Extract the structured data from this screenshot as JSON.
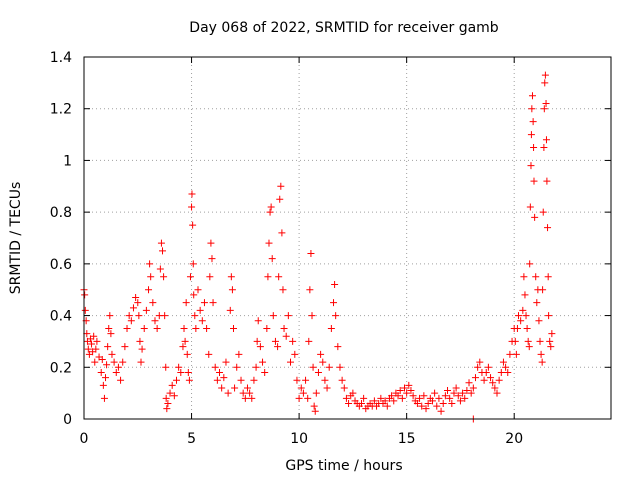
{
  "chart_data": {
    "type": "scatter",
    "title": "Day 068 of 2022, SRMTID for receiver gamb",
    "xlabel": "GPS time / hours",
    "ylabel": "SRMTID / TECUs",
    "xlim": [
      0,
      24.5
    ],
    "ylim": [
      0,
      1.4
    ],
    "xticks": [
      0,
      5,
      10,
      15,
      20
    ],
    "yticks": [
      0,
      0.2,
      0.4,
      0.6,
      0.8,
      1.0,
      1.2,
      1.4
    ],
    "xtick_labels": [
      "0",
      "5",
      "10",
      "15",
      "20"
    ],
    "ytick_labels": [
      "0",
      "0.2",
      "0.4",
      "0.6",
      "0.8",
      "1",
      "1.2",
      "1.4"
    ],
    "grid": true,
    "marker": "plus",
    "color": "#ff0000",
    "series": [
      {
        "name": "gamb",
        "points": [
          [
            0.0,
            0.5
          ],
          [
            0.03,
            0.48
          ],
          [
            0.06,
            0.42
          ],
          [
            0.1,
            0.38
          ],
          [
            0.13,
            0.33
          ],
          [
            0.16,
            0.3
          ],
          [
            0.2,
            0.27
          ],
          [
            0.25,
            0.25
          ],
          [
            0.3,
            0.31
          ],
          [
            0.35,
            0.29
          ],
          [
            0.4,
            0.26
          ],
          [
            0.45,
            0.32
          ],
          [
            0.5,
            0.22
          ],
          [
            0.55,
            0.27
          ],
          [
            0.6,
            0.3
          ],
          [
            0.7,
            0.24
          ],
          [
            0.8,
            0.18
          ],
          [
            0.85,
            0.23
          ],
          [
            0.9,
            0.13
          ],
          [
            0.95,
            0.08
          ],
          [
            1.0,
            0.16
          ],
          [
            1.05,
            0.21
          ],
          [
            1.1,
            0.28
          ],
          [
            1.15,
            0.35
          ],
          [
            1.2,
            0.4
          ],
          [
            1.25,
            0.33
          ],
          [
            1.3,
            0.25
          ],
          [
            1.4,
            0.22
          ],
          [
            1.5,
            0.18
          ],
          [
            1.6,
            0.2
          ],
          [
            1.7,
            0.15
          ],
          [
            1.8,
            0.22
          ],
          [
            1.9,
            0.28
          ],
          [
            2.0,
            0.35
          ],
          [
            2.1,
            0.4
          ],
          [
            2.2,
            0.38
          ],
          [
            2.3,
            0.43
          ],
          [
            2.4,
            0.47
          ],
          [
            2.5,
            0.45
          ],
          [
            2.55,
            0.4
          ],
          [
            2.6,
            0.3
          ],
          [
            2.65,
            0.22
          ],
          [
            2.7,
            0.27
          ],
          [
            2.8,
            0.35
          ],
          [
            2.9,
            0.42
          ],
          [
            3.0,
            0.5
          ],
          [
            3.05,
            0.6
          ],
          [
            3.1,
            0.55
          ],
          [
            3.2,
            0.45
          ],
          [
            3.3,
            0.38
          ],
          [
            3.4,
            0.35
          ],
          [
            3.5,
            0.4
          ],
          [
            3.55,
            0.58
          ],
          [
            3.6,
            0.68
          ],
          [
            3.65,
            0.65
          ],
          [
            3.7,
            0.55
          ],
          [
            3.75,
            0.4
          ],
          [
            3.8,
            0.2
          ],
          [
            3.82,
            0.08
          ],
          [
            3.85,
            0.04
          ],
          [
            3.9,
            0.06
          ],
          [
            4.0,
            0.1
          ],
          [
            4.1,
            0.13
          ],
          [
            4.2,
            0.09
          ],
          [
            4.3,
            0.15
          ],
          [
            4.4,
            0.2
          ],
          [
            4.5,
            0.18
          ],
          [
            4.6,
            0.28
          ],
          [
            4.65,
            0.35
          ],
          [
            4.7,
            0.3
          ],
          [
            4.75,
            0.45
          ],
          [
            4.8,
            0.25
          ],
          [
            4.85,
            0.18
          ],
          [
            4.9,
            0.15
          ],
          [
            4.95,
            0.55
          ],
          [
            5.0,
            0.82
          ],
          [
            5.02,
            0.87
          ],
          [
            5.05,
            0.75
          ],
          [
            5.08,
            0.6
          ],
          [
            5.1,
            0.48
          ],
          [
            5.15,
            0.4
          ],
          [
            5.2,
            0.35
          ],
          [
            5.3,
            0.5
          ],
          [
            5.4,
            0.42
          ],
          [
            5.5,
            0.38
          ],
          [
            5.6,
            0.45
          ],
          [
            5.7,
            0.35
          ],
          [
            5.8,
            0.25
          ],
          [
            5.85,
            0.55
          ],
          [
            5.9,
            0.68
          ],
          [
            5.95,
            0.62
          ],
          [
            6.0,
            0.45
          ],
          [
            6.1,
            0.2
          ],
          [
            6.2,
            0.15
          ],
          [
            6.3,
            0.18
          ],
          [
            6.4,
            0.12
          ],
          [
            6.5,
            0.16
          ],
          [
            6.6,
            0.22
          ],
          [
            6.7,
            0.1
          ],
          [
            6.8,
            0.42
          ],
          [
            6.85,
            0.55
          ],
          [
            6.9,
            0.5
          ],
          [
            6.95,
            0.35
          ],
          [
            7.0,
            0.12
          ],
          [
            7.1,
            0.2
          ],
          [
            7.2,
            0.25
          ],
          [
            7.3,
            0.15
          ],
          [
            7.4,
            0.1
          ],
          [
            7.5,
            0.08
          ],
          [
            7.6,
            0.12
          ],
          [
            7.7,
            0.1
          ],
          [
            7.8,
            0.08
          ],
          [
            7.9,
            0.15
          ],
          [
            8.0,
            0.2
          ],
          [
            8.05,
            0.3
          ],
          [
            8.1,
            0.38
          ],
          [
            8.2,
            0.28
          ],
          [
            8.3,
            0.22
          ],
          [
            8.4,
            0.18
          ],
          [
            8.5,
            0.35
          ],
          [
            8.55,
            0.55
          ],
          [
            8.6,
            0.68
          ],
          [
            8.65,
            0.8
          ],
          [
            8.7,
            0.82
          ],
          [
            8.75,
            0.62
          ],
          [
            8.8,
            0.4
          ],
          [
            8.9,
            0.3
          ],
          [
            9.0,
            0.28
          ],
          [
            9.05,
            0.55
          ],
          [
            9.1,
            0.85
          ],
          [
            9.15,
            0.9
          ],
          [
            9.2,
            0.72
          ],
          [
            9.25,
            0.5
          ],
          [
            9.3,
            0.35
          ],
          [
            9.4,
            0.32
          ],
          [
            9.5,
            0.4
          ],
          [
            9.6,
            0.22
          ],
          [
            9.7,
            0.3
          ],
          [
            9.8,
            0.25
          ],
          [
            9.9,
            0.15
          ],
          [
            10.0,
            0.08
          ],
          [
            10.1,
            0.12
          ],
          [
            10.2,
            0.1
          ],
          [
            10.3,
            0.15
          ],
          [
            10.4,
            0.08
          ],
          [
            10.45,
            0.3
          ],
          [
            10.5,
            0.5
          ],
          [
            10.55,
            0.64
          ],
          [
            10.6,
            0.4
          ],
          [
            10.65,
            0.2
          ],
          [
            10.7,
            0.05
          ],
          [
            10.75,
            0.03
          ],
          [
            10.8,
            0.1
          ],
          [
            10.9,
            0.18
          ],
          [
            11.0,
            0.25
          ],
          [
            11.1,
            0.22
          ],
          [
            11.2,
            0.15
          ],
          [
            11.3,
            0.12
          ],
          [
            11.4,
            0.2
          ],
          [
            11.5,
            0.35
          ],
          [
            11.6,
            0.45
          ],
          [
            11.65,
            0.52
          ],
          [
            11.7,
            0.4
          ],
          [
            11.8,
            0.28
          ],
          [
            11.9,
            0.2
          ],
          [
            12.0,
            0.15
          ],
          [
            12.1,
            0.12
          ],
          [
            12.2,
            0.08
          ],
          [
            12.3,
            0.06
          ],
          [
            12.4,
            0.09
          ],
          [
            12.5,
            0.1
          ],
          [
            12.6,
            0.07
          ],
          [
            12.7,
            0.06
          ],
          [
            12.8,
            0.05
          ],
          [
            12.9,
            0.06
          ],
          [
            13.0,
            0.08
          ],
          [
            13.1,
            0.04
          ],
          [
            13.2,
            0.05
          ],
          [
            13.3,
            0.06
          ],
          [
            13.4,
            0.05
          ],
          [
            13.5,
            0.07
          ],
          [
            13.6,
            0.05
          ],
          [
            13.7,
            0.06
          ],
          [
            13.8,
            0.08
          ],
          [
            13.9,
            0.06
          ],
          [
            14.0,
            0.07
          ],
          [
            14.1,
            0.05
          ],
          [
            14.2,
            0.08
          ],
          [
            14.3,
            0.09
          ],
          [
            14.4,
            0.07
          ],
          [
            14.5,
            0.1
          ],
          [
            14.6,
            0.09
          ],
          [
            14.7,
            0.11
          ],
          [
            14.8,
            0.08
          ],
          [
            14.9,
            0.12
          ],
          [
            15.0,
            0.1
          ],
          [
            15.1,
            0.13
          ],
          [
            15.2,
            0.11
          ],
          [
            15.3,
            0.09
          ],
          [
            15.4,
            0.07
          ],
          [
            15.5,
            0.06
          ],
          [
            15.6,
            0.08
          ],
          [
            15.7,
            0.05
          ],
          [
            15.8,
            0.09
          ],
          [
            15.9,
            0.04
          ],
          [
            16.0,
            0.06
          ],
          [
            16.1,
            0.08
          ],
          [
            16.2,
            0.07
          ],
          [
            16.3,
            0.1
          ],
          [
            16.4,
            0.05
          ],
          [
            16.5,
            0.08
          ],
          [
            16.6,
            0.03
          ],
          [
            16.7,
            0.06
          ],
          [
            16.8,
            0.09
          ],
          [
            16.9,
            0.11
          ],
          [
            17.0,
            0.08
          ],
          [
            17.1,
            0.06
          ],
          [
            17.2,
            0.1
          ],
          [
            17.3,
            0.12
          ],
          [
            17.4,
            0.09
          ],
          [
            17.5,
            0.07
          ],
          [
            17.6,
            0.1
          ],
          [
            17.7,
            0.08
          ],
          [
            17.8,
            0.11
          ],
          [
            17.9,
            0.14
          ],
          [
            18.0,
            0.1
          ],
          [
            18.1,
            0.12
          ],
          [
            18.2,
            0.16
          ],
          [
            18.3,
            0.2
          ],
          [
            18.4,
            0.22
          ],
          [
            18.5,
            0.18
          ],
          [
            18.6,
            0.15
          ],
          [
            18.7,
            0.18
          ],
          [
            18.8,
            0.2
          ],
          [
            18.9,
            0.16
          ],
          [
            19.0,
            0.14
          ],
          [
            19.1,
            0.12
          ],
          [
            19.2,
            0.1
          ],
          [
            19.3,
            0.15
          ],
          [
            19.4,
            0.18
          ],
          [
            19.5,
            0.22
          ],
          [
            19.6,
            0.2
          ],
          [
            19.7,
            0.18
          ],
          [
            19.8,
            0.25
          ],
          [
            19.9,
            0.3
          ],
          [
            20.0,
            0.35
          ],
          [
            20.05,
            0.3
          ],
          [
            20.1,
            0.25
          ],
          [
            20.15,
            0.35
          ],
          [
            20.2,
            0.4
          ],
          [
            20.3,
            0.38
          ],
          [
            20.4,
            0.42
          ],
          [
            20.45,
            0.55
          ],
          [
            20.5,
            0.48
          ],
          [
            20.55,
            0.4
          ],
          [
            20.6,
            0.35
          ],
          [
            20.65,
            0.3
          ],
          [
            20.7,
            0.28
          ],
          [
            20.72,
            0.6
          ],
          [
            20.75,
            0.82
          ],
          [
            20.78,
            0.98
          ],
          [
            20.8,
            1.1
          ],
          [
            20.82,
            1.2
          ],
          [
            20.85,
            1.25
          ],
          [
            20.88,
            1.15
          ],
          [
            20.9,
            1.05
          ],
          [
            20.92,
            0.92
          ],
          [
            20.95,
            0.78
          ],
          [
            21.0,
            0.55
          ],
          [
            21.05,
            0.45
          ],
          [
            21.1,
            0.5
          ],
          [
            21.15,
            0.38
          ],
          [
            21.2,
            0.3
          ],
          [
            21.25,
            0.25
          ],
          [
            21.3,
            0.22
          ],
          [
            21.32,
            0.5
          ],
          [
            21.35,
            0.8
          ],
          [
            21.38,
            1.05
          ],
          [
            21.4,
            1.2
          ],
          [
            21.42,
            1.3
          ],
          [
            21.45,
            1.33
          ],
          [
            21.48,
            1.22
          ],
          [
            21.5,
            1.08
          ],
          [
            21.52,
            0.92
          ],
          [
            21.55,
            0.74
          ],
          [
            21.58,
            0.55
          ],
          [
            21.6,
            0.4
          ],
          [
            21.65,
            0.3
          ],
          [
            21.7,
            0.28
          ],
          [
            21.75,
            0.33
          ],
          [
            18.1,
            0.0
          ]
        ]
      }
    ]
  }
}
